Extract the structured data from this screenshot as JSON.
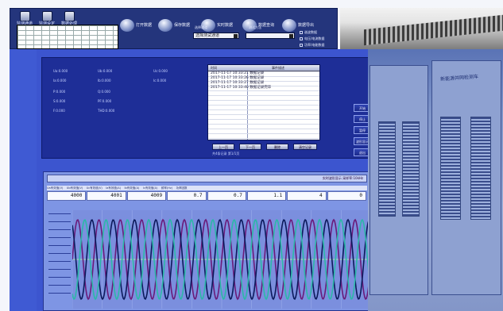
{
  "toolbar": {
    "small_buttons": [
      "监测通道",
      "监测设定",
      "数据处理"
    ],
    "main_buttons": [
      "打开数据",
      "保存数据",
      "实时数据",
      "数据查询",
      "数据导出"
    ],
    "select_label_1": "选择通道",
    "select_value_1": "选择测试通道",
    "select_label_2": "测试方法",
    "select_value_2": "",
    "checkboxes": [
      "谐波数据",
      "电压/电流数据",
      "功率/电能数据"
    ]
  },
  "upper_panel": {
    "params": [
      [
        "Ua:0.000",
        "Ub:0.000",
        "Uc:0.000"
      ],
      [
        "Ia:0.000",
        "Ib:0.000",
        "Ic:0.000"
      ],
      [
        "P:0.000",
        "Q:0.000"
      ],
      [
        "S:0.000",
        "PF:0.000"
      ],
      [
        "F:0.000",
        "THD:0.000"
      ]
    ],
    "list_header": [
      "时间",
      "事件描述"
    ],
    "list_rows": [
      [
        "2017-11-17 10:33:21",
        "数据记录"
      ],
      [
        "2017-11-17 10:33:26",
        "数据记录"
      ],
      [
        "2017-11-17 10:33:27",
        "数据记录"
      ],
      [
        "2017-11-17 10:33:40",
        "数据记录完毕"
      ]
    ],
    "list_buttons": [
      "上一页",
      "下一页",
      "删除",
      "清空记录"
    ],
    "side_buttons": [
      "开始",
      "停止",
      "暂停",
      "波形显示",
      "退出"
    ],
    "footer_text": "共4条记录 第1/1页"
  },
  "scope": {
    "status_text": "实时波形显示 采样率:10kHz",
    "headers": [
      "Ua有效值(V)",
      "Ub有效值(V)",
      "Uc有效值(V)",
      "Ia有效值(A)",
      "Ib有效值(A)",
      "Ic有效值(A)",
      "频率(Hz)",
      "功率因数"
    ],
    "values": [
      "4000",
      "4001",
      "4009",
      "0.7",
      "0.7",
      "1.1",
      "4",
      "0"
    ],
    "colors": {
      "phase_a": "#6a1b7a",
      "phase_b": "#0c1a5c",
      "phase_c": "#2bb8a8",
      "trigger": "#a8e0b8"
    }
  },
  "photo_caption": "新能源并网检测车"
}
